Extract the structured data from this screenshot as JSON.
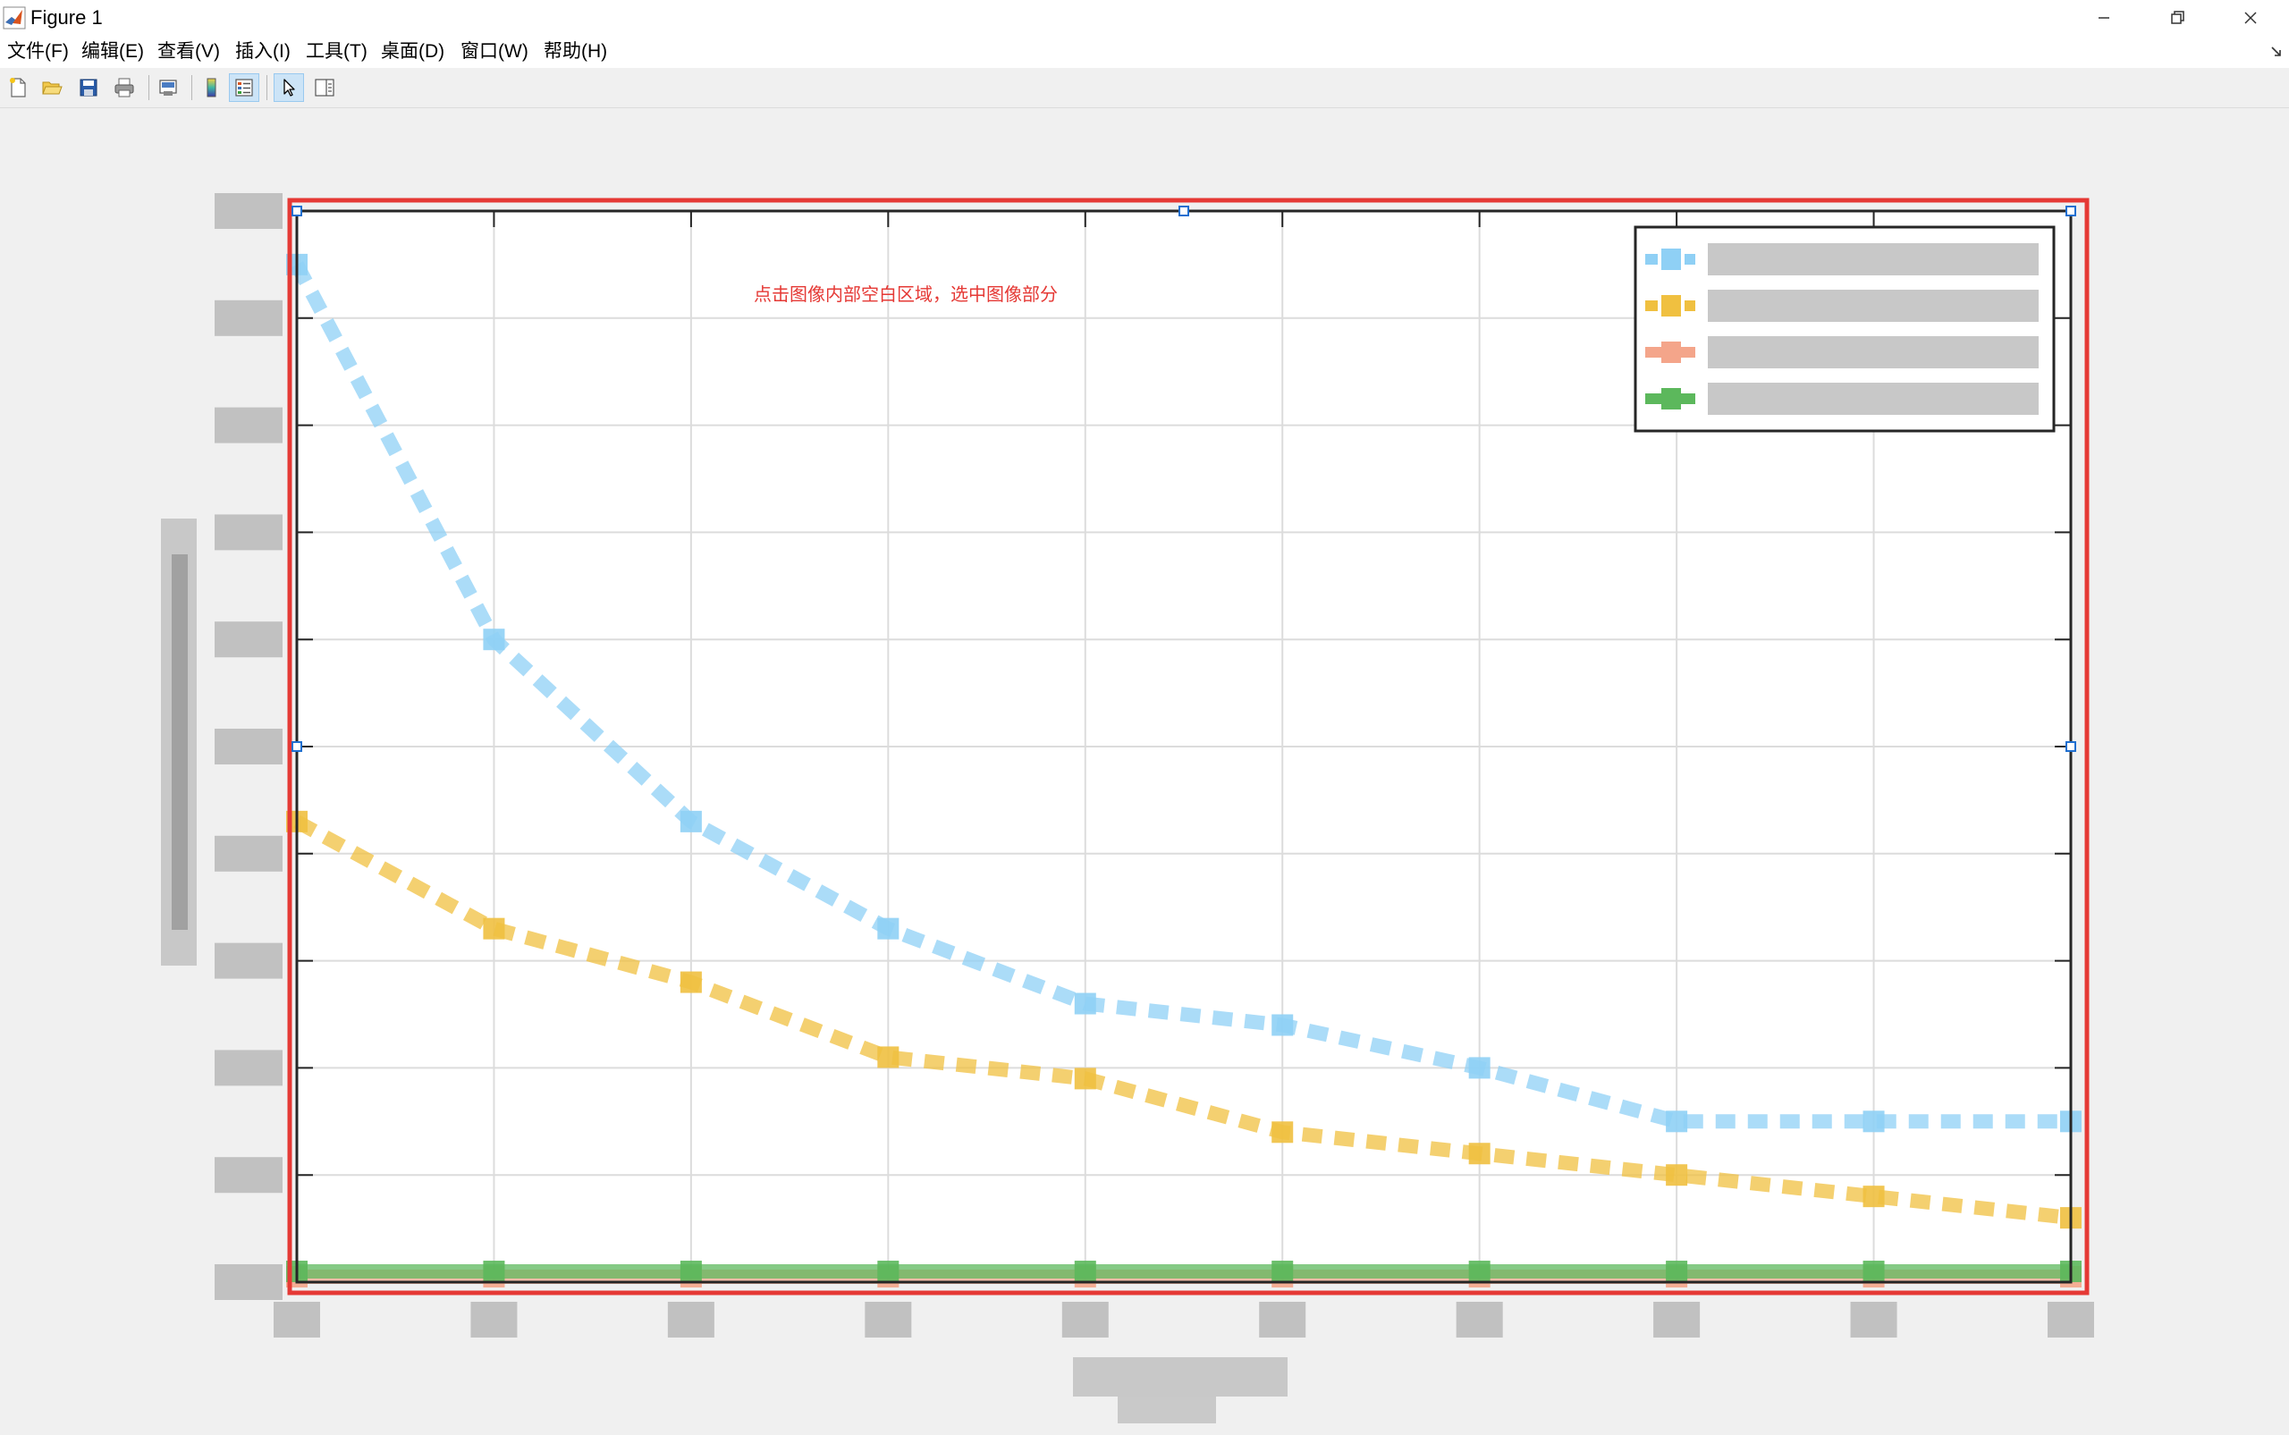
{
  "window": {
    "title": "Figure 1"
  },
  "menu": {
    "items": [
      {
        "label": "文件(F)"
      },
      {
        "label": "编辑(E)"
      },
      {
        "label": "查看(V)"
      },
      {
        "label": "插入(I)"
      },
      {
        "label": "工具(T)"
      },
      {
        "label": "桌面(D)"
      },
      {
        "label": "窗口(W)"
      },
      {
        "label": "帮助(H)"
      }
    ]
  },
  "toolbar": {
    "buttons": [
      {
        "name": "new-figure-button",
        "icon": "new-file-icon"
      },
      {
        "name": "open-file-button",
        "icon": "folder-open-icon"
      },
      {
        "name": "save-figure-button",
        "icon": "save-icon"
      },
      {
        "name": "print-figure-button",
        "icon": "printer-icon"
      },
      {
        "name": "link-plot-button",
        "icon": "link-plot-icon"
      },
      {
        "name": "insert-colorbar-button",
        "icon": "colorbar-icon"
      },
      {
        "name": "insert-legend-button",
        "icon": "legend-icon",
        "active": true
      },
      {
        "name": "edit-plot-button",
        "icon": "cursor-arrow-icon",
        "active": true
      },
      {
        "name": "property-inspector-button",
        "icon": "property-panel-icon"
      }
    ]
  },
  "plot": {
    "annotation": "点击图像内部空白区域，选中图像部分",
    "selection_color": "#e53935",
    "annotation_color": "#e53935"
  },
  "chart_data": {
    "type": "line",
    "x": [
      0,
      1,
      2,
      3,
      4,
      5,
      6,
      7,
      8,
      9
    ],
    "xlim": [
      0,
      9
    ],
    "ylim": [
      0,
      10
    ],
    "grid": true,
    "legend_placement": "top-right",
    "series": [
      {
        "color": "#8fd0f5",
        "style": "dashed",
        "values": [
          9.5,
          6.0,
          4.3,
          3.3,
          2.6,
          2.4,
          2.0,
          1.5,
          1.5,
          1.5
        ]
      },
      {
        "color": "#f0c040",
        "style": "dashed",
        "values": [
          4.3,
          3.3,
          2.8,
          2.1,
          1.9,
          1.4,
          1.2,
          1.0,
          0.8,
          0.6
        ]
      },
      {
        "color": "#f4a58a",
        "style": "solid",
        "values": [
          0.05,
          0.05,
          0.05,
          0.05,
          0.05,
          0.05,
          0.05,
          0.05,
          0.05,
          0.05
        ]
      },
      {
        "color": "#5cb85c",
        "style": "solid",
        "values": [
          0.1,
          0.1,
          0.1,
          0.1,
          0.1,
          0.1,
          0.1,
          0.1,
          0.1,
          0.1
        ]
      }
    ]
  }
}
